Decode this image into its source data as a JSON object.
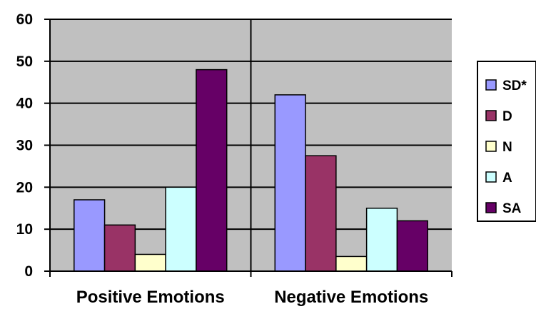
{
  "chart_data": {
    "type": "bar",
    "categories": [
      "Positive Emotions",
      "Negative Emotions"
    ],
    "series": [
      {
        "name": "SD*",
        "values": [
          17,
          42
        ],
        "color": "#9999ff"
      },
      {
        "name": "D",
        "values": [
          11,
          27.5
        ],
        "color": "#993366"
      },
      {
        "name": "N",
        "values": [
          4,
          3.5
        ],
        "color": "#ffffcc"
      },
      {
        "name": "A",
        "values": [
          20,
          15
        ],
        "color": "#ccffff"
      },
      {
        "name": "SA",
        "values": [
          48,
          12
        ],
        "color": "#660066"
      }
    ],
    "yticks": [
      "0",
      "10",
      "20",
      "30",
      "40",
      "50",
      "60"
    ],
    "ylim": [
      0,
      60
    ],
    "title": "",
    "xlabel": "",
    "ylabel": "",
    "grid": true,
    "plot_background": "#c0c0c0",
    "legend_position": "right"
  }
}
